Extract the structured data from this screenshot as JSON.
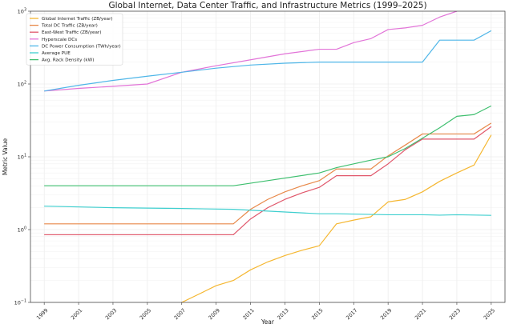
{
  "chart_data": {
    "type": "line",
    "title": "Global Internet, Data Center Traffic, and Infrastructure Metrics (1999–2025)",
    "xlabel": "Year",
    "ylabel": "Metric Value",
    "yscale": "log",
    "ylim": [
      0.1,
      1000
    ],
    "xlim": [
      1998.2,
      2025.8
    ],
    "grid": true,
    "legend_position": "top-left",
    "x_ticks": [
      1999,
      2001,
      2003,
      2005,
      2007,
      2009,
      2011,
      2013,
      2015,
      2017,
      2019,
      2021,
      2023,
      2025
    ],
    "y_ticks": [
      {
        "value": 0.1,
        "base": "10",
        "exp": "−1"
      },
      {
        "value": 1,
        "base": "10",
        "exp": "0"
      },
      {
        "value": 10,
        "base": "10",
        "exp": "1"
      },
      {
        "value": 100,
        "base": "10",
        "exp": "2"
      },
      {
        "value": 1000,
        "base": "10",
        "exp": "3"
      }
    ],
    "series": [
      {
        "name": "Global Internet Traffic (ZB/year)",
        "color": "#f5b731",
        "x": [
          2007,
          2008,
          2009,
          2010,
          2011,
          2012,
          2013,
          2014,
          2015,
          2016,
          2017,
          2018,
          2019,
          2020,
          2021,
          2022,
          2023,
          2024,
          2025
        ],
        "y": [
          0.1,
          0.13,
          0.17,
          0.2,
          0.28,
          0.36,
          0.44,
          0.52,
          0.6,
          1.2,
          1.35,
          1.5,
          2.4,
          2.6,
          3.3,
          4.6,
          6.0,
          7.7,
          20
        ]
      },
      {
        "name": "Total DC Traffic (ZB/year)",
        "color": "#e8894a",
        "x": [
          1999,
          2010,
          2011,
          2012,
          2013,
          2014,
          2015,
          2016,
          2017,
          2018,
          2019,
          2020,
          2021,
          2022,
          2023,
          2024,
          2025
        ],
        "y": [
          1.2,
          1.2,
          1.9,
          2.6,
          3.3,
          4.0,
          4.7,
          6.8,
          6.8,
          6.8,
          10.3,
          14.5,
          20.6,
          20.6,
          20.6,
          20.6,
          29
        ]
      },
      {
        "name": "East-West Traffic (ZB/year)",
        "color": "#e0576b",
        "x": [
          1999,
          2010,
          2011,
          2012,
          2013,
          2014,
          2015,
          2016,
          2017,
          2018,
          2019,
          2020,
          2021,
          2022,
          2023,
          2024,
          2025
        ],
        "y": [
          0.85,
          0.85,
          1.4,
          2.0,
          2.6,
          3.2,
          3.8,
          5.5,
          5.5,
          5.5,
          8.0,
          12.5,
          17.5,
          17.5,
          17.5,
          17.5,
          26
        ]
      },
      {
        "name": "Hyperscale DCs",
        "color": "#e274d8",
        "x": [
          1999,
          2001,
          2003,
          2005,
          2007,
          2009,
          2011,
          2013,
          2015,
          2016,
          2017,
          2018,
          2019,
          2020,
          2021,
          2022,
          2023
        ],
        "y": [
          80,
          87,
          93,
          100,
          145,
          178,
          215,
          260,
          300,
          300,
          370,
          420,
          560,
          590,
          640,
          830,
          1000
        ]
      },
      {
        "name": "DC Power Consumption (TWh/year)",
        "color": "#4fb6e8",
        "x": [
          1999,
          2001,
          2003,
          2005,
          2007,
          2009,
          2011,
          2013,
          2015,
          2017,
          2019,
          2021,
          2022,
          2023,
          2024,
          2025
        ],
        "y": [
          80,
          96,
          112,
          128,
          145,
          165,
          182,
          193,
          200,
          200,
          200,
          200,
          400,
          400,
          400,
          540
        ]
      },
      {
        "name": "Average PUE",
        "color": "#3fcfcf",
        "x": [
          1999,
          2003,
          2007,
          2010,
          2015,
          2016,
          2019,
          2021,
          2022,
          2023,
          2025
        ],
        "y": [
          2.1,
          2.0,
          1.95,
          1.9,
          1.65,
          1.65,
          1.6,
          1.6,
          1.58,
          1.6,
          1.57
        ]
      },
      {
        "name": "Avg. Rack Density (kW)",
        "color": "#3fbf6f",
        "x": [
          1999,
          2003,
          2007,
          2010,
          2012,
          2015,
          2016,
          2017,
          2018,
          2019,
          2020,
          2021,
          2022,
          2023,
          2024,
          2025
        ],
        "y": [
          4.0,
          4.0,
          4.0,
          4.0,
          4.7,
          6.0,
          7.1,
          8.0,
          9.0,
          10.0,
          13.0,
          18.0,
          25.0,
          36.0,
          38.0,
          50.0
        ]
      }
    ]
  }
}
